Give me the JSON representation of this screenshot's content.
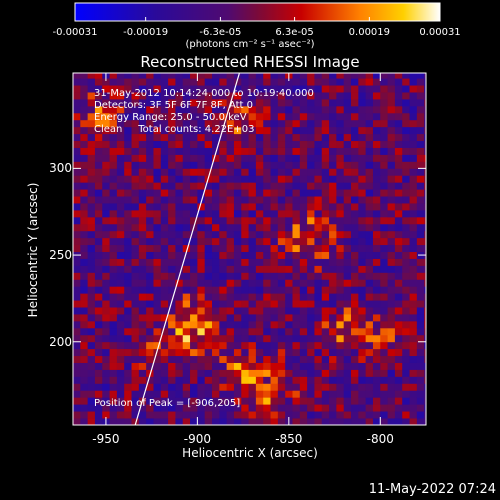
{
  "chart_data": {
    "type": "heatmap",
    "title": "Reconstructed RHESSI Image",
    "xlabel": "Heliocentric X (arcsec)",
    "ylabel": "Heliocentric Y (arcsec)",
    "xlim": [
      -968,
      -775
    ],
    "ylim": [
      152,
      355
    ],
    "x_ticks": [
      "-950",
      "-900",
      "-850",
      "-800"
    ],
    "x_tick_values": [
      -950,
      -900,
      -850,
      -800
    ],
    "y_ticks": [
      "200",
      "250",
      "300"
    ],
    "y_tick_values": [
      200,
      250,
      300
    ],
    "colorbar": {
      "range": [
        -0.00031,
        0.00031
      ],
      "tick_labels": [
        "-0.00031",
        "-0.00019",
        "-6.3e-05",
        "6.3e-05",
        "0.00019",
        "0.00031"
      ],
      "tick_values": [
        -0.00031,
        -0.00019,
        -6.3e-05,
        6.3e-05,
        0.00019,
        0.00031
      ],
      "units": "(photons cm⁻² s⁻¹ asec⁻²)"
    },
    "annotations": [
      "31-May-2012 10:14:24.000 to 10:19:40.000",
      "Detectors: 3F 5F 6F 7F 8F, Att 0",
      "Energy Range: 25.0 - 50.0 keV",
      "Clean     Total counts: 4.22E+03"
    ],
    "peak_label": "Position of Peak = [-906,205]",
    "peak": [
      -906,
      205
    ],
    "limb_line": [
      [
        -934,
        152
      ],
      [
        -877,
        355
      ]
    ]
  },
  "footer": "11-May-2022 07:24"
}
